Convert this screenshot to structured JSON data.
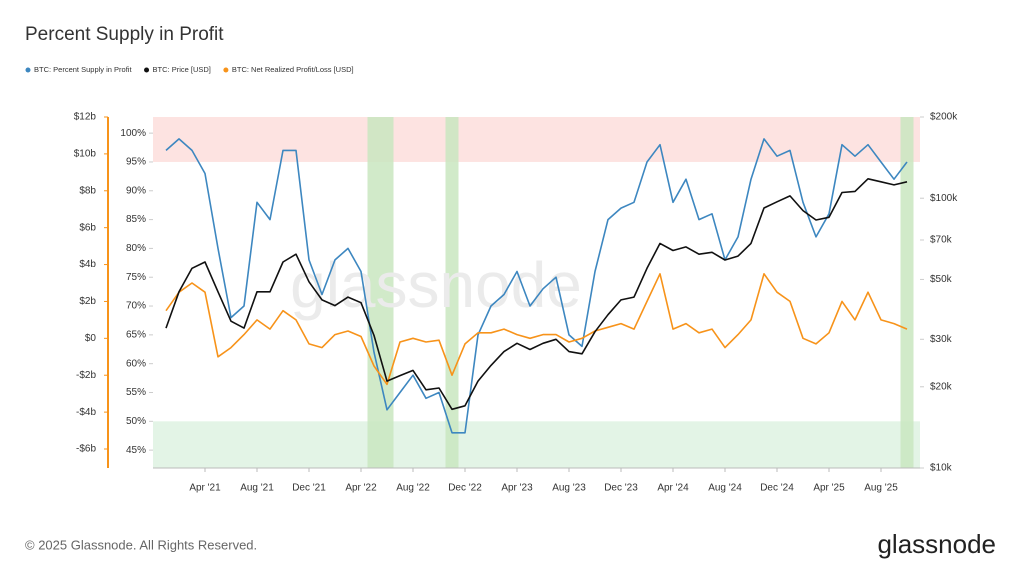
{
  "chart_data": {
    "type": "line",
    "title": "Percent Supply in Profit",
    "watermark": "glassnode",
    "footer": "© 2025 Glassnode. All Rights Reserved.",
    "brand": "glassnode",
    "x": [
      "2021-01",
      "2021-02",
      "2021-03",
      "2021-04",
      "2021-05",
      "2021-06",
      "2021-07",
      "2021-08",
      "2021-09",
      "2021-10",
      "2021-11",
      "2021-12",
      "2022-01",
      "2022-02",
      "2022-03",
      "2022-04",
      "2022-05",
      "2022-06",
      "2022-07",
      "2022-08",
      "2022-09",
      "2022-10",
      "2022-11",
      "2022-12",
      "2023-01",
      "2023-02",
      "2023-03",
      "2023-04",
      "2023-05",
      "2023-06",
      "2023-07",
      "2023-08",
      "2023-09",
      "2023-10",
      "2023-11",
      "2023-12",
      "2024-01",
      "2024-02",
      "2024-03",
      "2024-04",
      "2024-05",
      "2024-06",
      "2024-07",
      "2024-08",
      "2024-09",
      "2024-10",
      "2024-11",
      "2024-12",
      "2025-01",
      "2025-02",
      "2025-03",
      "2025-04",
      "2025-05",
      "2025-06",
      "2025-07",
      "2025-08",
      "2025-09",
      "2025-10"
    ],
    "xlim": [
      "2020-12",
      "2025-11"
    ],
    "xticks": [
      {
        "value": "2021-04",
        "label": "Apr '21"
      },
      {
        "value": "2021-08",
        "label": "Aug '21"
      },
      {
        "value": "2021-12",
        "label": "Dec '21"
      },
      {
        "value": "2022-04",
        "label": "Apr '22"
      },
      {
        "value": "2022-08",
        "label": "Aug '22"
      },
      {
        "value": "2022-12",
        "label": "Dec '22"
      },
      {
        "value": "2023-04",
        "label": "Apr '23"
      },
      {
        "value": "2023-08",
        "label": "Aug '23"
      },
      {
        "value": "2023-12",
        "label": "Dec '23"
      },
      {
        "value": "2024-04",
        "label": "Apr '24"
      },
      {
        "value": "2024-08",
        "label": "Aug '24"
      },
      {
        "value": "2024-12",
        "label": "Dec '24"
      },
      {
        "value": "2025-04",
        "label": "Apr '25"
      },
      {
        "value": "2025-08",
        "label": "Aug '25"
      }
    ],
    "ylim": [
      41.9,
      102.8
    ],
    "yticks": [
      {
        "value": 45,
        "label": "45%"
      },
      {
        "value": 50,
        "label": "50%"
      },
      {
        "value": 55,
        "label": "55%"
      },
      {
        "value": 60,
        "label": "60%"
      },
      {
        "value": 65,
        "label": "65%"
      },
      {
        "value": 70,
        "label": "70%"
      },
      {
        "value": 75,
        "label": "75%"
      },
      {
        "value": 80,
        "label": "80%"
      },
      {
        "value": 85,
        "label": "85%"
      },
      {
        "value": 90,
        "label": "90%"
      },
      {
        "value": 95,
        "label": "95%"
      },
      {
        "value": 100,
        "label": "100%"
      }
    ],
    "y2lim": [
      10000,
      200000
    ],
    "y2scale": "log",
    "y2ticks": [
      {
        "value": 10000,
        "label": "$10k"
      },
      {
        "value": 20000,
        "label": "$20k"
      },
      {
        "value": 30000,
        "label": "$30k"
      },
      {
        "value": 50000,
        "label": "$50k"
      },
      {
        "value": 70000,
        "label": "$70k"
      },
      {
        "value": 100000,
        "label": "$100k"
      },
      {
        "value": 200000,
        "label": "$200k"
      }
    ],
    "y3lim": [
      -7.03,
      12
    ],
    "y3ticks": [
      {
        "value": -6,
        "label": "-$6b"
      },
      {
        "value": -4,
        "label": "-$4b"
      },
      {
        "value": -2,
        "label": "-$2b"
      },
      {
        "value": 0,
        "label": "$0"
      },
      {
        "value": 2,
        "label": "$2b"
      },
      {
        "value": 4,
        "label": "$4b"
      },
      {
        "value": 6,
        "label": "$6b"
      },
      {
        "value": 8,
        "label": "$8b"
      },
      {
        "value": 10,
        "label": "$10b"
      },
      {
        "value": 12,
        "label": "$12b"
      }
    ],
    "y3color": "#f7931a",
    "high_zone_from": 95,
    "high_zone_color": "#fde3e1",
    "low_zone_to": 50,
    "low_zone_color": "#e3f4e6",
    "highlights": [
      "2022-05",
      "2022-06",
      "2022-11",
      "2025-10"
    ],
    "highlight_color": "#c9e6bf",
    "series": [
      {
        "name": "BTC: Percent Supply in Profit",
        "color": "#3d87c0",
        "axis": "y",
        "values": [
          97,
          99,
          97,
          93,
          80,
          68,
          70,
          88,
          85,
          97,
          97,
          78,
          72,
          78,
          80,
          76,
          62,
          52,
          55,
          58,
          54,
          55,
          48,
          48,
          65,
          70,
          72,
          76,
          70,
          73,
          75,
          65,
          63,
          76,
          85,
          87,
          88,
          95,
          98,
          88,
          92,
          85,
          86,
          78,
          82,
          92,
          99,
          96,
          97,
          88,
          82,
          86,
          98,
          96,
          98,
          95,
          92,
          95
        ]
      },
      {
        "name": "BTC: Price [USD]",
        "color": "#111111",
        "axis": "y2",
        "values": [
          33000,
          45000,
          55000,
          58000,
          45000,
          35000,
          33000,
          45000,
          45000,
          58000,
          62000,
          49000,
          42000,
          40000,
          43000,
          41000,
          31000,
          21000,
          22000,
          23000,
          19500,
          19800,
          16500,
          17000,
          21000,
          24000,
          27000,
          29000,
          27500,
          29000,
          30000,
          27000,
          26500,
          32000,
          37000,
          42000,
          43000,
          55000,
          68000,
          64000,
          66000,
          62000,
          63000,
          59000,
          61000,
          68000,
          92000,
          97000,
          102000,
          90000,
          83000,
          85000,
          105000,
          106000,
          118000,
          115000,
          112000,
          115000
        ]
      },
      {
        "name": "BTC: Net Realized Profit/Loss [USD]",
        "color": "#f7931a",
        "axis": "y3",
        "values": [
          1.5,
          2.5,
          3,
          2.5,
          -1,
          -0.5,
          0.2,
          1,
          0.5,
          1.5,
          1,
          -0.3,
          -0.5,
          0.2,
          0.4,
          0.1,
          -1.5,
          -2.5,
          -0.2,
          0,
          -0.2,
          -0.1,
          -2,
          -0.3,
          0.3,
          0.3,
          0.5,
          0.2,
          0,
          0.2,
          0.2,
          -0.2,
          0,
          0.4,
          0.6,
          0.8,
          0.5,
          2,
          3.5,
          0.5,
          0.8,
          0.3,
          0.5,
          -0.5,
          0.2,
          1,
          3.5,
          2.5,
          2,
          0,
          -0.3,
          0.3,
          2,
          1,
          2.5,
          1,
          0.8,
          0.5
        ]
      }
    ]
  }
}
